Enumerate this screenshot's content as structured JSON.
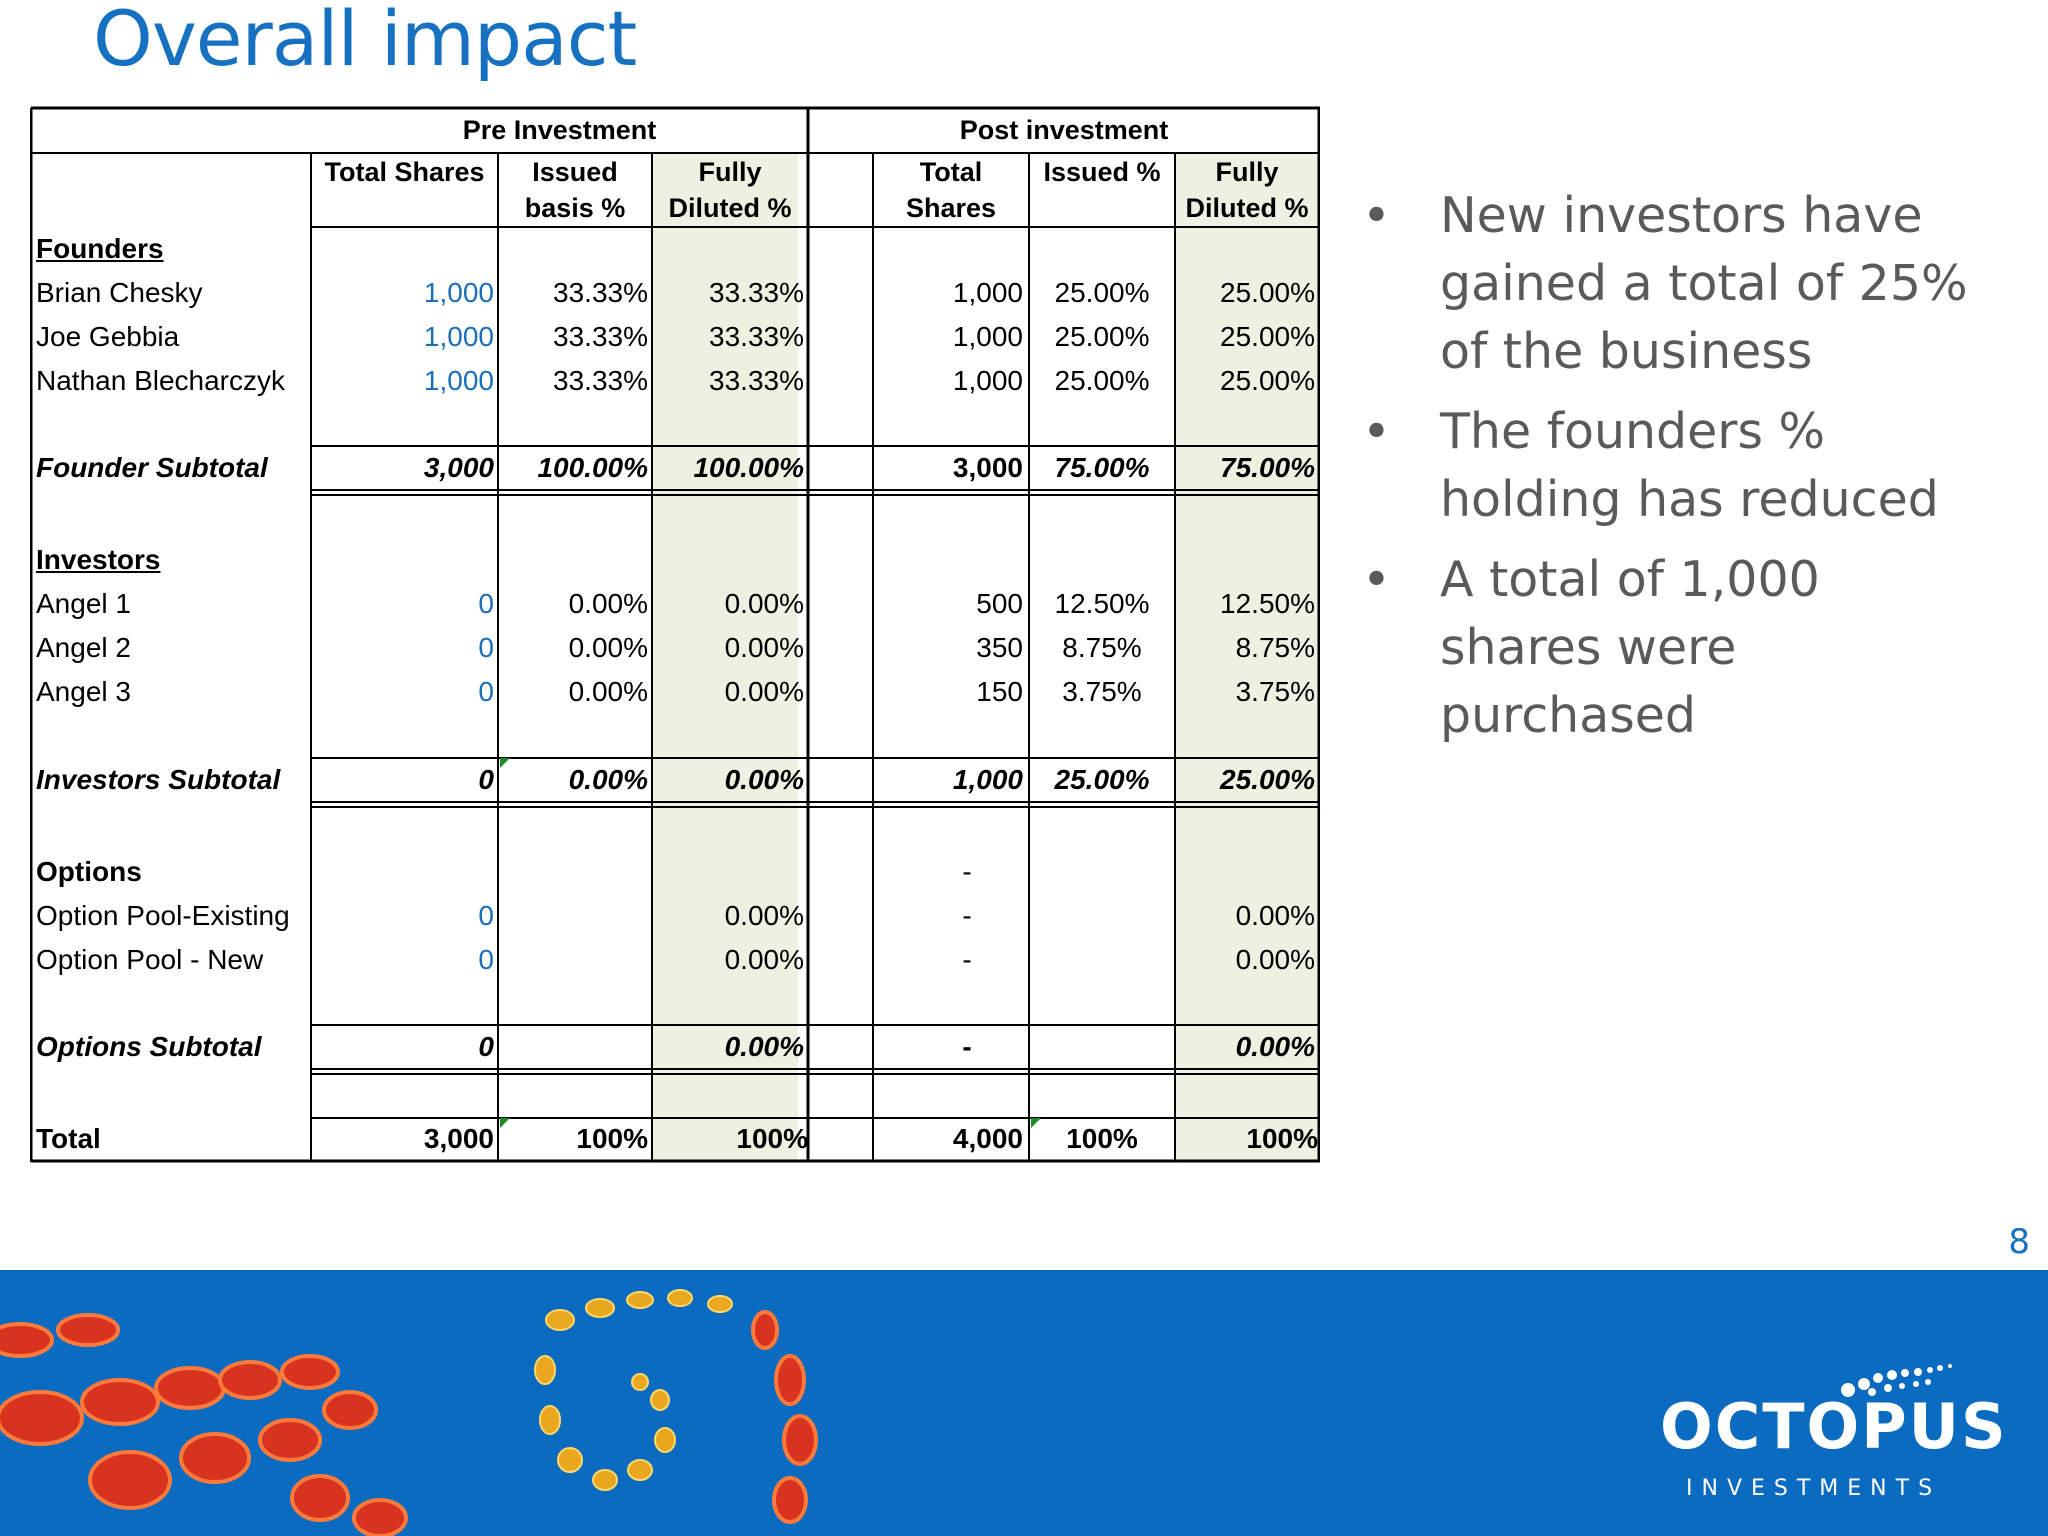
{
  "title": "Overall impact",
  "page_number": "8",
  "table": {
    "group_pre": "Pre Investment",
    "group_post": "Post investment",
    "headers": {
      "pre_total_shares": "Total Shares",
      "pre_issued_1": "Issued",
      "pre_issued_2": "basis %",
      "pre_fd_1": "Fully",
      "pre_fd_2": "Diluted %",
      "post_total_1": "Total",
      "post_total_2": "Shares",
      "post_issued": "Issued %",
      "post_fd_1": "Fully",
      "post_fd_2": "Diluted %"
    },
    "sections": {
      "founders": "Founders",
      "investors": "Investors",
      "options": "Options"
    },
    "rows": [
      {
        "label": "Brian Chesky",
        "pre_shares": "1,000",
        "pre_issued": "33.33%",
        "pre_fd": "33.33%",
        "post_shares": "1,000",
        "post_issued": "25.00%",
        "post_fd": "25.00%"
      },
      {
        "label": "Joe Gebbia",
        "pre_shares": "1,000",
        "pre_issued": "33.33%",
        "pre_fd": "33.33%",
        "post_shares": "1,000",
        "post_issued": "25.00%",
        "post_fd": "25.00%"
      },
      {
        "label": "Nathan Blecharczyk",
        "pre_shares": "1,000",
        "pre_issued": "33.33%",
        "pre_fd": "33.33%",
        "post_shares": "1,000",
        "post_issued": "25.00%",
        "post_fd": "25.00%"
      },
      {
        "label": "Founder Subtotal",
        "pre_shares": "3,000",
        "pre_issued": "100.00%",
        "pre_fd": "100.00%",
        "post_shares": "3,000",
        "post_issued": "75.00%",
        "post_fd": "75.00%"
      },
      {
        "label": "Angel 1",
        "pre_shares": "0",
        "pre_issued": "0.00%",
        "pre_fd": "0.00%",
        "post_shares": "500",
        "post_issued": "12.50%",
        "post_fd": "12.50%"
      },
      {
        "label": "Angel 2",
        "pre_shares": "0",
        "pre_issued": "0.00%",
        "pre_fd": "0.00%",
        "post_shares": "350",
        "post_issued": "8.75%",
        "post_fd": "8.75%"
      },
      {
        "label": "Angel 3",
        "pre_shares": "0",
        "pre_issued": "0.00%",
        "pre_fd": "0.00%",
        "post_shares": "150",
        "post_issued": "3.75%",
        "post_fd": "3.75%"
      },
      {
        "label": "Investors Subtotal",
        "pre_shares": "0",
        "pre_issued": "0.00%",
        "pre_fd": "0.00%",
        "post_shares": "1,000",
        "post_issued": "25.00%",
        "post_fd": "25.00%"
      },
      {
        "label": "Options",
        "post_shares": "-"
      },
      {
        "label": "Option Pool-Existing",
        "pre_shares": "0",
        "pre_fd": "0.00%",
        "post_shares": "-",
        "post_fd": "0.00%"
      },
      {
        "label": "Option Pool - New",
        "pre_shares": "0",
        "pre_fd": "0.00%",
        "post_shares": "-",
        "post_fd": "0.00%"
      },
      {
        "label": "Options Subtotal",
        "pre_shares": "0",
        "pre_fd": "0.00%",
        "post_shares": "-",
        "post_fd": "0.00%"
      },
      {
        "label": "Total",
        "pre_shares": "3,000",
        "pre_issued": "100%",
        "pre_fd": "100%",
        "post_shares": "4,000",
        "post_issued": "100%",
        "post_fd": "100%"
      }
    ]
  },
  "bullets": [
    "New investors have gained a total of 25% of the business",
    "The founders % holding has reduced",
    "A total of 1,000 shares were purchased"
  ],
  "bullet_glyph": "•",
  "logo": {
    "name": "OCTOPUS",
    "subtitle": "INVESTMENTS"
  },
  "colors": {
    "title": "#1672c1",
    "footer": "#0b6bc1",
    "shade": "#eef0e2",
    "blue_input": "#1a6fba"
  }
}
